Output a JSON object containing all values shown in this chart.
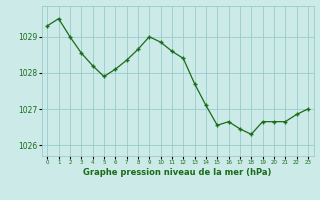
{
  "x": [
    0,
    1,
    2,
    3,
    4,
    5,
    6,
    7,
    8,
    9,
    10,
    11,
    12,
    13,
    14,
    15,
    16,
    17,
    18,
    19,
    20,
    21,
    22,
    23
  ],
  "y": [
    1029.3,
    1029.5,
    1029.0,
    1028.55,
    1028.2,
    1027.9,
    1028.1,
    1028.35,
    1028.65,
    1029.0,
    1028.85,
    1028.6,
    1028.4,
    1027.7,
    1027.1,
    1026.55,
    1026.65,
    1026.45,
    1026.3,
    1026.65,
    1026.65,
    1026.65,
    1026.85,
    1027.0
  ],
  "line_color": "#1a6b1a",
  "marker_color": "#1a6b1a",
  "bg_color": "#cceae7",
  "grid_color": "#99cccc",
  "label_text_color": "#1a6b1a",
  "xlabel": "Graphe pression niveau de la mer (hPa)",
  "ylim": [
    1025.7,
    1029.85
  ],
  "yticks": [
    1026,
    1027,
    1028,
    1029
  ],
  "xticks": [
    0,
    1,
    2,
    3,
    4,
    5,
    6,
    7,
    8,
    9,
    10,
    11,
    12,
    13,
    14,
    15,
    16,
    17,
    18,
    19,
    20,
    21,
    22,
    23
  ]
}
